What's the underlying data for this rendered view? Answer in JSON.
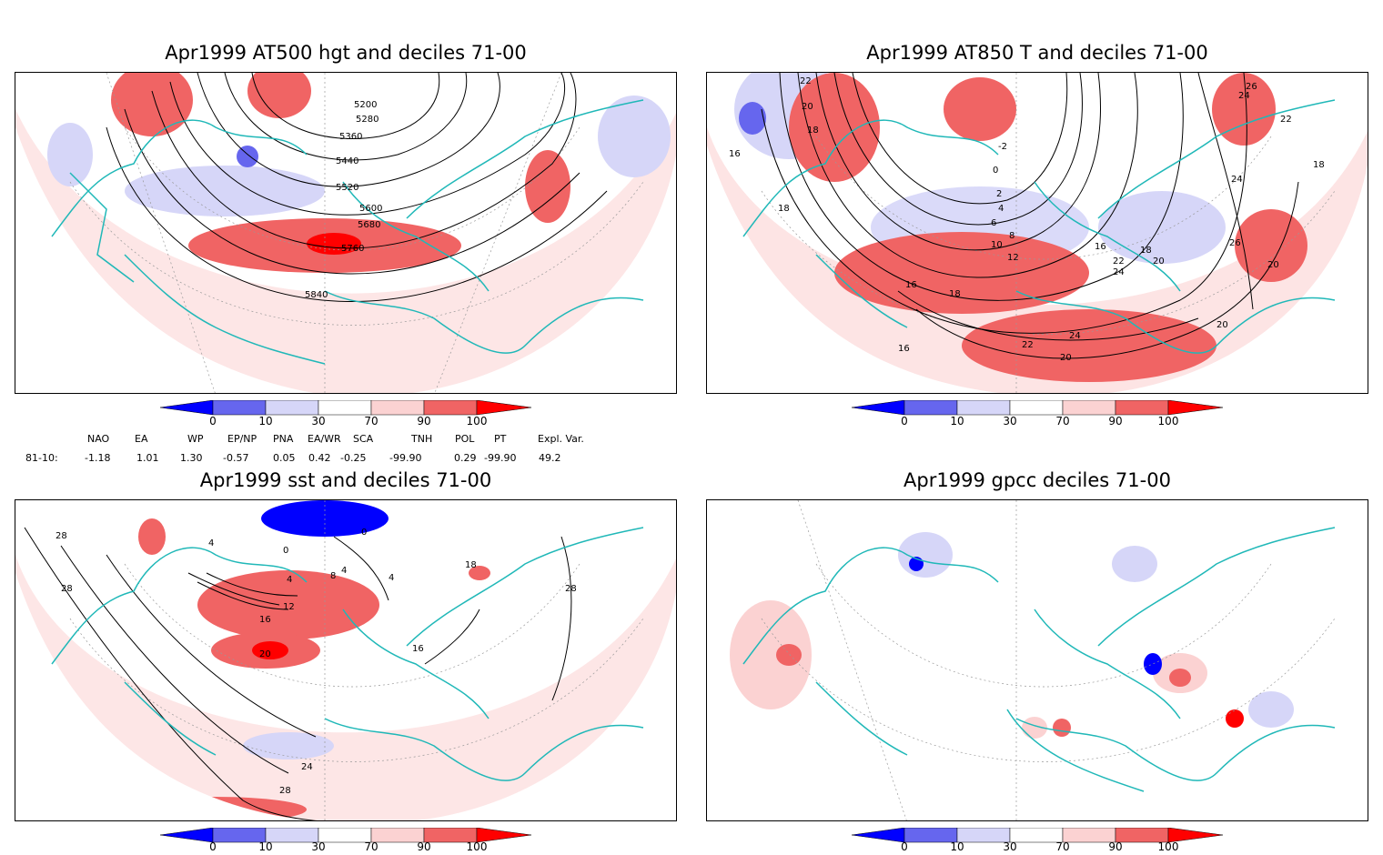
{
  "panels": [
    {
      "title": "Apr1999 AT500 hgt and deciles 71-00",
      "contour_labels": [
        "5200",
        "5280",
        "5360",
        "5440",
        "5520",
        "5600",
        "5680",
        "5760",
        "5840"
      ]
    },
    {
      "title": "Apr1999 AT850 T and deciles 71-00",
      "contour_labels": [
        "22",
        "20",
        "18",
        "16",
        "18",
        "-2",
        "0",
        "2",
        "4",
        "6",
        "8",
        "10",
        "12",
        "16",
        "18",
        "16",
        "18",
        "20",
        "22",
        "24",
        "26",
        "24",
        "24",
        "26",
        "24",
        "22",
        "20",
        "20",
        "18",
        "22",
        "16",
        "20"
      ]
    },
    {
      "title": "Apr1999 sst and deciles 71-00",
      "contour_labels": [
        "28",
        "28",
        "4",
        "0",
        "0",
        "4",
        "4",
        "8",
        "12",
        "16",
        "20",
        "4",
        "16",
        "18",
        "28",
        "24",
        "28"
      ]
    },
    {
      "title": "Apr1999 gpcc deciles 71-00",
      "contour_labels": []
    }
  ],
  "colorbar": {
    "labels": [
      "0",
      "10",
      "30",
      "70",
      "90",
      "100"
    ],
    "colors": [
      "#0000ff",
      "#6666ee",
      "#d6d6f8",
      "#ffffff",
      "#fbd2d2",
      "#f06464",
      "#ff0000"
    ]
  },
  "indices": {
    "headers": [
      "NAO",
      "EA",
      "WP",
      "EP/NP",
      "PNA",
      "EA/WR",
      "SCA",
      "TNH",
      "POL",
      "PT",
      "Expl. Var."
    ],
    "row_label": "81-10:",
    "values": [
      "-1.18",
      "1.01",
      "1.30",
      "-0.57",
      "0.05",
      "0.42",
      "-0.25",
      "-99.90",
      "0.29",
      "-99.90",
      "49.2"
    ]
  },
  "map_colors": {
    "land_outline": "#20b8b8",
    "contour": "#000000",
    "grid": "#999999"
  }
}
